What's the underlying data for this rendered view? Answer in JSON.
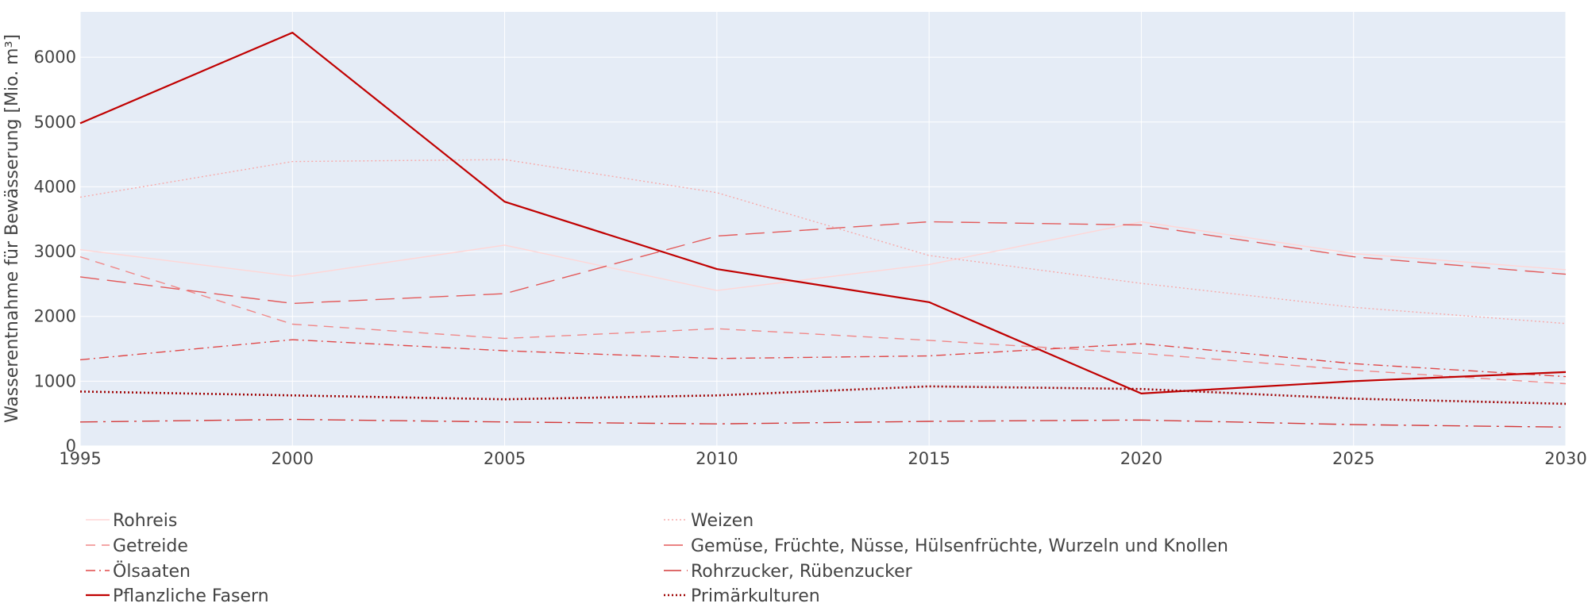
{
  "chart_data": {
    "type": "line",
    "title": "",
    "xlabel": "",
    "ylabel": "Wasserentnahme für Bewässerung [Mio. m³]",
    "x": [
      1995,
      2000,
      2005,
      2010,
      2015,
      2020,
      2025,
      2030
    ],
    "xlim": [
      1995,
      2030
    ],
    "ylim": [
      0,
      6700
    ],
    "xticks": [
      1995,
      2000,
      2005,
      2010,
      2015,
      2020,
      2025,
      2030
    ],
    "yticks": [
      0,
      1000,
      2000,
      3000,
      4000,
      5000,
      6000
    ],
    "grid": true,
    "legend_position": "bottom",
    "colors": {
      "plot_bg": "#e5ecf6",
      "grid": "#ffffff",
      "text": "#444444"
    },
    "series": [
      {
        "name": "Rohreis",
        "color": "#ffd6d6",
        "dash": "solid",
        "width": 1.4,
        "values": [
          3030,
          2620,
          3100,
          2400,
          2800,
          3460,
          2970,
          2720
        ]
      },
      {
        "name": "Weizen",
        "color": "#f7aaaa",
        "dash": "dot",
        "width": 1.4,
        "values": [
          3840,
          4390,
          4420,
          3910,
          2940,
          2510,
          2140,
          1890
        ]
      },
      {
        "name": "Getreide",
        "color": "#f08888",
        "dash": "dash",
        "width": 1.4,
        "values": [
          2920,
          1880,
          1660,
          1810,
          1630,
          1430,
          1170,
          960
        ]
      },
      {
        "name": "Gemüse, Früchte, Nüsse, Hülsenfrüchte, Wurzeln und Knollen",
        "color": "#e35a5a",
        "dash": "longdash",
        "width": 1.4,
        "values": [
          2610,
          2200,
          2350,
          3240,
          3460,
          3410,
          2920,
          2650
        ]
      },
      {
        "name": "Ölsaaten",
        "color": "#e04848",
        "dash": "dashdot",
        "width": 1.4,
        "values": [
          1330,
          1640,
          1470,
          1350,
          1390,
          1580,
          1270,
          1070
        ]
      },
      {
        "name": "Rohrzucker, Rübenzucker",
        "color": "#d43a3a",
        "dash": "longdashdot",
        "width": 1.4,
        "values": [
          370,
          410,
          370,
          340,
          380,
          400,
          330,
          290
        ]
      },
      {
        "name": "Pflanzliche Fasern",
        "color": "#c00000",
        "dash": "solid",
        "width": 2.2,
        "values": [
          4980,
          6380,
          3770,
          2730,
          2220,
          810,
          1000,
          1140
        ]
      },
      {
        "name": "Primärkulturen",
        "color": "#9e0000",
        "dash": "dot",
        "width": 2.6,
        "values": [
          840,
          780,
          720,
          780,
          920,
          880,
          730,
          650
        ]
      }
    ]
  }
}
